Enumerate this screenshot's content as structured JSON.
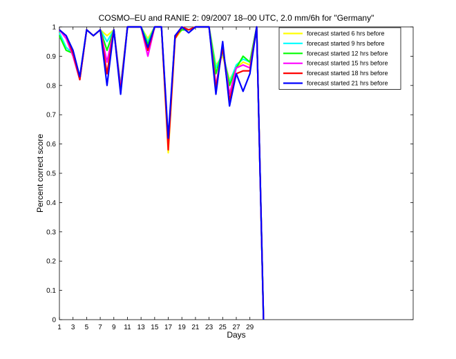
{
  "chart_data": {
    "type": "line",
    "title": "COSMO–EU and RANIE 2: 09/2007 18–00 UTC, 2.0 mm/6h for \"Germany\"",
    "xlabel": "Days",
    "ylabel": "Percent correct score",
    "xlim": [
      1,
      53
    ],
    "ylim": [
      0,
      1
    ],
    "xticks": [
      1,
      3,
      5,
      7,
      9,
      11,
      13,
      15,
      17,
      19,
      21,
      23,
      25,
      27,
      29
    ],
    "yticks": [
      0,
      0.1,
      0.2,
      0.3,
      0.4,
      0.5,
      0.6,
      0.7,
      0.8,
      0.9,
      1
    ],
    "ytick_labels": [
      "0",
      "0.1",
      "0.2",
      "0.3",
      "0.4",
      "0.5",
      "0.6",
      "0.7",
      "0.8",
      "0.9",
      "1"
    ],
    "legend_position": "top-right",
    "grid": false,
    "x": [
      1,
      2,
      3,
      4,
      5,
      6,
      7,
      8,
      9,
      10,
      11,
      12,
      13,
      14,
      15,
      16,
      17,
      18,
      19,
      20,
      21,
      22,
      23,
      24,
      25,
      26,
      27,
      28,
      29,
      30,
      31
    ],
    "series": [
      {
        "name": "forecast started 6 hrs before",
        "color": "#ffff00",
        "values": [
          0.98,
          0.93,
          0.91,
          0.83,
          0.99,
          0.97,
          0.99,
          0.97,
          0.99,
          0.8,
          1.0,
          1.0,
          1.0,
          0.96,
          1.0,
          1.0,
          0.57,
          0.96,
          0.99,
          0.99,
          1.0,
          1.0,
          1.0,
          0.87,
          0.9,
          0.82,
          0.86,
          0.88,
          0.87,
          1.0,
          0.0
        ]
      },
      {
        "name": "forecast started 9 hrs before",
        "color": "#00ffff",
        "values": [
          0.98,
          0.93,
          0.91,
          0.83,
          0.99,
          0.97,
          0.99,
          0.95,
          0.99,
          0.8,
          1.0,
          1.0,
          1.0,
          0.95,
          1.0,
          1.0,
          0.6,
          0.97,
          0.99,
          0.99,
          1.0,
          1.0,
          1.0,
          0.86,
          0.91,
          0.81,
          0.87,
          0.89,
          0.88,
          1.0,
          0.0
        ]
      },
      {
        "name": "forecast started 12 hrs before",
        "color": "#00ff00",
        "values": [
          0.97,
          0.92,
          0.91,
          0.82,
          0.99,
          0.97,
          0.99,
          0.92,
          0.99,
          0.79,
          1.0,
          1.0,
          1.0,
          0.94,
          1.0,
          1.0,
          0.6,
          0.97,
          0.99,
          0.99,
          1.0,
          1.0,
          1.0,
          0.84,
          0.92,
          0.8,
          0.86,
          0.9,
          0.88,
          1.0,
          0.0
        ]
      },
      {
        "name": "forecast started 15 hrs before",
        "color": "#ff00ff",
        "values": [
          0.99,
          0.96,
          0.9,
          0.82,
          0.99,
          0.97,
          0.99,
          0.88,
          0.99,
          0.79,
          1.0,
          1.0,
          1.0,
          0.9,
          1.0,
          1.0,
          0.6,
          0.97,
          1.0,
          0.99,
          1.0,
          1.0,
          1.0,
          0.8,
          0.93,
          0.77,
          0.86,
          0.87,
          0.86,
          1.0,
          0.0
        ]
      },
      {
        "name": "forecast started 18 hrs before",
        "color": "#ff0000",
        "values": [
          0.99,
          0.97,
          0.91,
          0.82,
          0.99,
          0.97,
          0.99,
          0.84,
          0.99,
          0.78,
          1.0,
          1.0,
          1.0,
          0.92,
          1.0,
          1.0,
          0.58,
          0.96,
          1.0,
          0.99,
          1.0,
          1.0,
          1.0,
          0.79,
          0.93,
          0.75,
          0.84,
          0.85,
          0.85,
          1.0,
          0.0
        ]
      },
      {
        "name": "forecast started 21 hrs before",
        "color": "#0000ff",
        "values": [
          0.99,
          0.97,
          0.92,
          0.83,
          0.99,
          0.97,
          0.99,
          0.8,
          0.99,
          0.77,
          1.0,
          1.0,
          1.0,
          0.93,
          1.0,
          1.0,
          0.62,
          0.97,
          1.0,
          0.98,
          1.0,
          1.0,
          1.0,
          0.77,
          0.95,
          0.73,
          0.84,
          0.78,
          0.84,
          1.0,
          0.0
        ]
      }
    ]
  }
}
